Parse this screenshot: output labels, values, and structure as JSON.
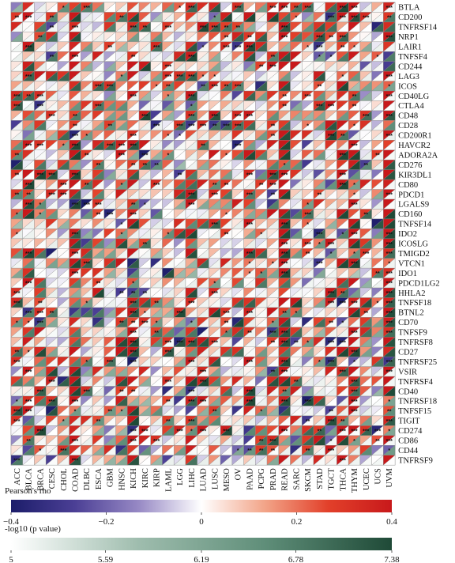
{
  "chart_data": {
    "type": "heatmap",
    "cell_style": "split-triangle: upper-left triangle encodes Pearson's rho, lower-right triangle encodes -log10(p value)",
    "x_categories": [
      "ACC",
      "BLCA",
      "BRCA",
      "CESC",
      "CHOL",
      "COAD",
      "DLBC",
      "ESCA",
      "GBM",
      "HNSC",
      "KICH",
      "KIRC",
      "KIRP",
      "LAML",
      "LGG",
      "LIHC",
      "LUAD",
      "LUSC",
      "MESO",
      "OV",
      "PAAD",
      "PCPG",
      "PRAD",
      "READ",
      "SARC",
      "SKCM",
      "STAD",
      "TGCT",
      "THCA",
      "THYM",
      "UCEC",
      "UCS",
      "UVM"
    ],
    "y_categories": [
      "BTLA",
      "CD200",
      "TNFRSF14",
      "NRP1",
      "LAIR1",
      "TNFSF4",
      "CD244",
      "LAG3",
      "ICOS",
      "CD40LG",
      "CTLA4",
      "CD48",
      "CD28",
      "CD200R1",
      "HAVCR2",
      "ADORA2A",
      "CD276",
      "KIR3DL1",
      "CD80",
      "PDCD1",
      "LGALS9",
      "CD160",
      "TNFSF14",
      "IDO2",
      "ICOSLG",
      "TMIGD2",
      "VTCN1",
      "IDO1",
      "PDCD1LG2",
      "HHLA2",
      "TNFSF18",
      "BTNL2",
      "CD70",
      "TNFSF9",
      "TNFRSF8",
      "CD27",
      "TNFRSF25",
      "VSIR",
      "TNFRSF4",
      "CD40",
      "TNFRSF18",
      "TNFSF15",
      "TIGIT",
      "CD274",
      "CD86",
      "CD44",
      "TNFRSF9"
    ],
    "rho_legend": {
      "title": "Pearson's rho",
      "range": [
        -0.4,
        0.4
      ],
      "ticks": [
        "-0.4",
        "-0.2",
        "0",
        "0.2",
        "0.4"
      ],
      "colors": [
        "#1c1d6a",
        "#4b3f95",
        "#9688c4",
        "#ffffff",
        "#f2a488",
        "#e2402a",
        "#c8191b"
      ]
    },
    "p_legend": {
      "title": "-log10 (p value)",
      "range": [
        5,
        7.38
      ],
      "ticks": [
        "5",
        "5.59",
        "6.19",
        "6.78",
        "7.38"
      ],
      "colors": [
        "#ffffff",
        "#9fbdae",
        "#5f8e79",
        "#1f4a37"
      ]
    },
    "values_note": "Per-cell rho and p values are too dense to read individually; the page reproduces the colour pattern procedurally."
  }
}
